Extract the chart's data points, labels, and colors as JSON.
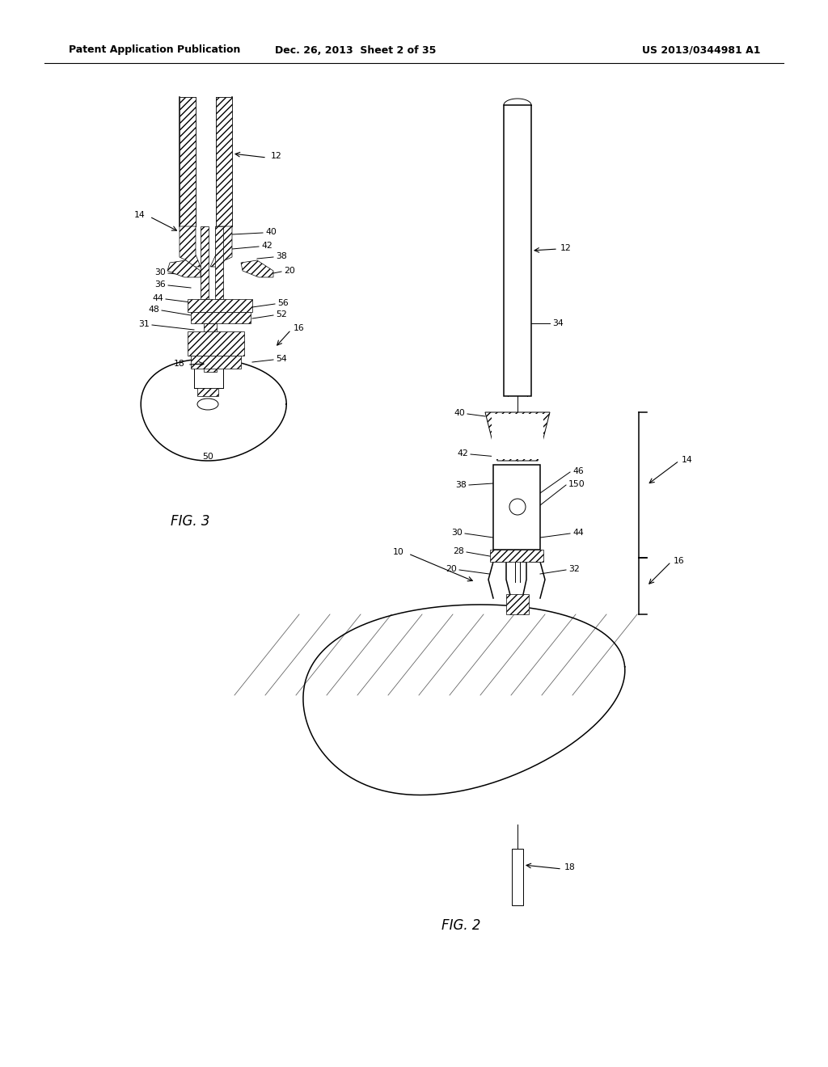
{
  "bg_color": "#ffffff",
  "line_color": "#000000",
  "header_left": "Patent Application Publication",
  "header_center": "Dec. 26, 2013  Sheet 2 of 35",
  "header_right": "US 2013/0344981 A1",
  "fig3_label": "FIG. 3",
  "fig2_label": "FIG. 2",
  "lbl_fs": 8.0,
  "fig_label_fs": 12.0,
  "header_fs": 9.0
}
